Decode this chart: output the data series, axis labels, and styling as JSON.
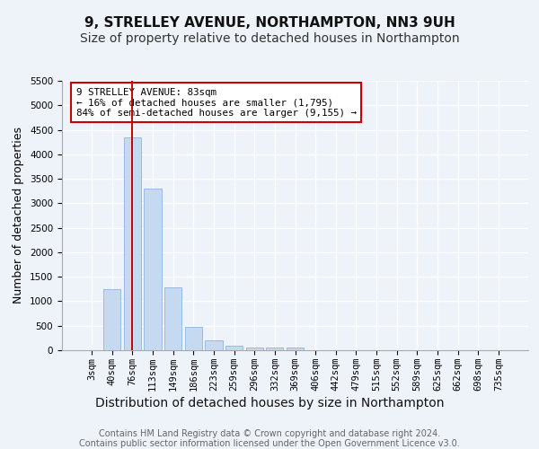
{
  "title_line1": "9, STRELLEY AVENUE, NORTHAMPTON, NN3 9UH",
  "title_line2": "Size of property relative to detached houses in Northampton",
  "xlabel": "Distribution of detached houses by size in Northampton",
  "ylabel": "Number of detached properties",
  "bar_labels": [
    "3sqm",
    "40sqm",
    "76sqm",
    "113sqm",
    "149sqm",
    "186sqm",
    "223sqm",
    "259sqm",
    "296sqm",
    "332sqm",
    "369sqm",
    "406sqm",
    "442sqm",
    "479sqm",
    "515sqm",
    "552sqm",
    "589sqm",
    "625sqm",
    "662sqm",
    "698sqm",
    "735sqm"
  ],
  "bar_values": [
    0,
    1255,
    4350,
    3300,
    1280,
    480,
    200,
    90,
    60,
    50,
    55,
    0,
    0,
    0,
    0,
    0,
    0,
    0,
    0,
    0,
    0
  ],
  "bar_color": "#c5d9f1",
  "bar_edge_color": "#8db4e2",
  "ylim": [
    0,
    5500
  ],
  "yticks": [
    0,
    500,
    1000,
    1500,
    2000,
    2500,
    3000,
    3500,
    4000,
    4500,
    5000,
    5500
  ],
  "red_line_index": 2,
  "red_line_color": "#cc0000",
  "annotation_text": "9 STRELLEY AVENUE: 83sqm\n← 16% of detached houses are smaller (1,795)\n84% of semi-detached houses are larger (9,155) →",
  "annotation_box_color": "#ffffff",
  "annotation_box_edge_color": "#cc0000",
  "footer_line1": "Contains HM Land Registry data © Crown copyright and database right 2024.",
  "footer_line2": "Contains public sector information licensed under the Open Government Licence v3.0.",
  "bg_color": "#eef2f9",
  "plot_bg_color": "#eef2f9",
  "grid_color": "#ffffff",
  "title_fontsize": 11,
  "subtitle_fontsize": 10,
  "xlabel_fontsize": 10,
  "ylabel_fontsize": 9,
  "tick_fontsize": 7.5,
  "annotation_fontsize": 7.8,
  "footer_fontsize": 7
}
